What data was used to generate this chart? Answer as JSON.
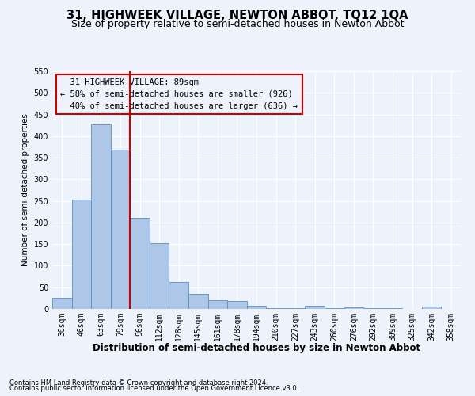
{
  "title": "31, HIGHWEEK VILLAGE, NEWTON ABBOT, TQ12 1QA",
  "subtitle": "Size of property relative to semi-detached houses in Newton Abbot",
  "xlabel": "Distribution of semi-detached houses by size in Newton Abbot",
  "ylabel": "Number of semi-detached properties",
  "footnote1": "Contains HM Land Registry data © Crown copyright and database right 2024.",
  "footnote2": "Contains public sector information licensed under the Open Government Licence v3.0.",
  "bar_labels": [
    "30sqm",
    "46sqm",
    "63sqm",
    "79sqm",
    "96sqm",
    "112sqm",
    "128sqm",
    "145sqm",
    "161sqm",
    "178sqm",
    "194sqm",
    "210sqm",
    "227sqm",
    "243sqm",
    "260sqm",
    "276sqm",
    "292sqm",
    "309sqm",
    "325sqm",
    "342sqm",
    "358sqm"
  ],
  "bar_values": [
    25,
    253,
    428,
    368,
    210,
    152,
    63,
    34,
    21,
    18,
    8,
    1,
    1,
    8,
    1,
    4,
    1,
    1,
    0,
    6,
    0
  ],
  "bar_color": "#aec6e8",
  "bar_edge_color": "#5a8fc2",
  "property_label": "31 HIGHWEEK VILLAGE: 89sqm",
  "smaller_pct": "58%",
  "smaller_count": "926",
  "larger_pct": "40%",
  "larger_count": "636",
  "annotation_box_color": "#cc0000",
  "ylim": [
    0,
    550
  ],
  "background_color": "#eef2fb",
  "grid_color": "#ffffff",
  "title_fontsize": 10.5,
  "subtitle_fontsize": 9,
  "xlabel_fontsize": 8.5,
  "ylabel_fontsize": 7.5,
  "tick_fontsize": 7,
  "annot_fontsize": 7.5,
  "footnote_fontsize": 6
}
